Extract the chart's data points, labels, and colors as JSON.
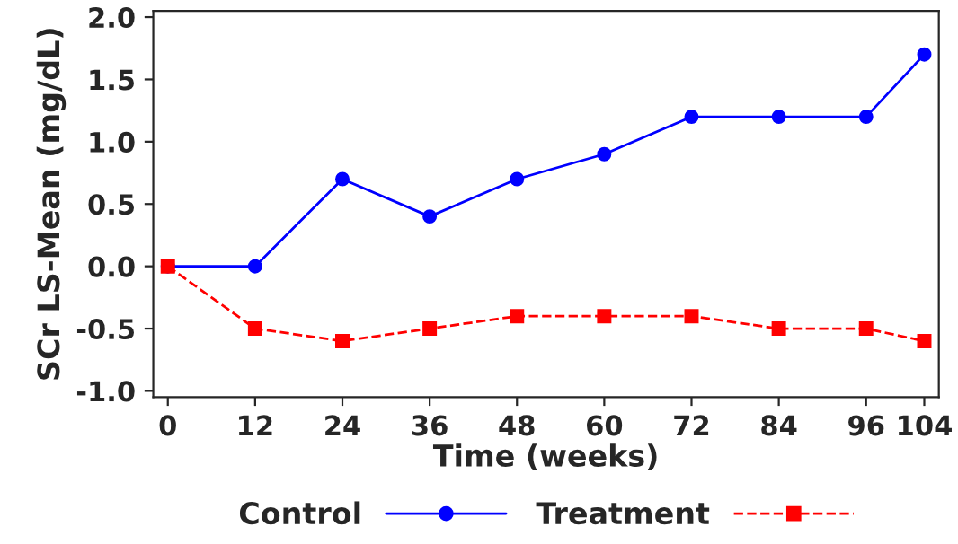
{
  "chart_data": {
    "type": "line",
    "xlabel": "Time (weeks)",
    "ylabel": "SCr LS-Mean (mg/dL)",
    "x": [
      0,
      12,
      24,
      36,
      48,
      60,
      72,
      84,
      96,
      104
    ],
    "series": [
      {
        "name": "Control",
        "color": "#0000ff",
        "values": [
          0,
          0,
          0.7,
          0.4,
          0.7,
          0.9,
          1.2,
          1.2,
          1.2,
          1.7
        ],
        "marker": "circle",
        "line_style": "solid"
      },
      {
        "name": "Treatment",
        "color": "#ff0000",
        "values": [
          0,
          -0.5,
          -0.6,
          -0.5,
          -0.4,
          -0.4,
          -0.4,
          -0.5,
          -0.5,
          -0.6
        ],
        "marker": "square",
        "line_style": "dashed"
      }
    ],
    "xlim": [
      -2,
      106
    ],
    "xticks": [
      0,
      12,
      24,
      36,
      48,
      60,
      72,
      84,
      96,
      104
    ],
    "ylim": [
      -1.05,
      2.05
    ],
    "yticks": [
      {
        "value": -1,
        "label": "-1.0"
      },
      {
        "value": -0.5,
        "label": "-0.5"
      },
      {
        "value": 0,
        "label": "0.0"
      },
      {
        "value": 0.5,
        "label": "0.5"
      },
      {
        "value": 1,
        "label": "1.0"
      },
      {
        "value": 1.5,
        "label": "1.5"
      },
      {
        "value": 2,
        "label": "2.0"
      }
    ],
    "legend": "bottom",
    "grid": false
  }
}
